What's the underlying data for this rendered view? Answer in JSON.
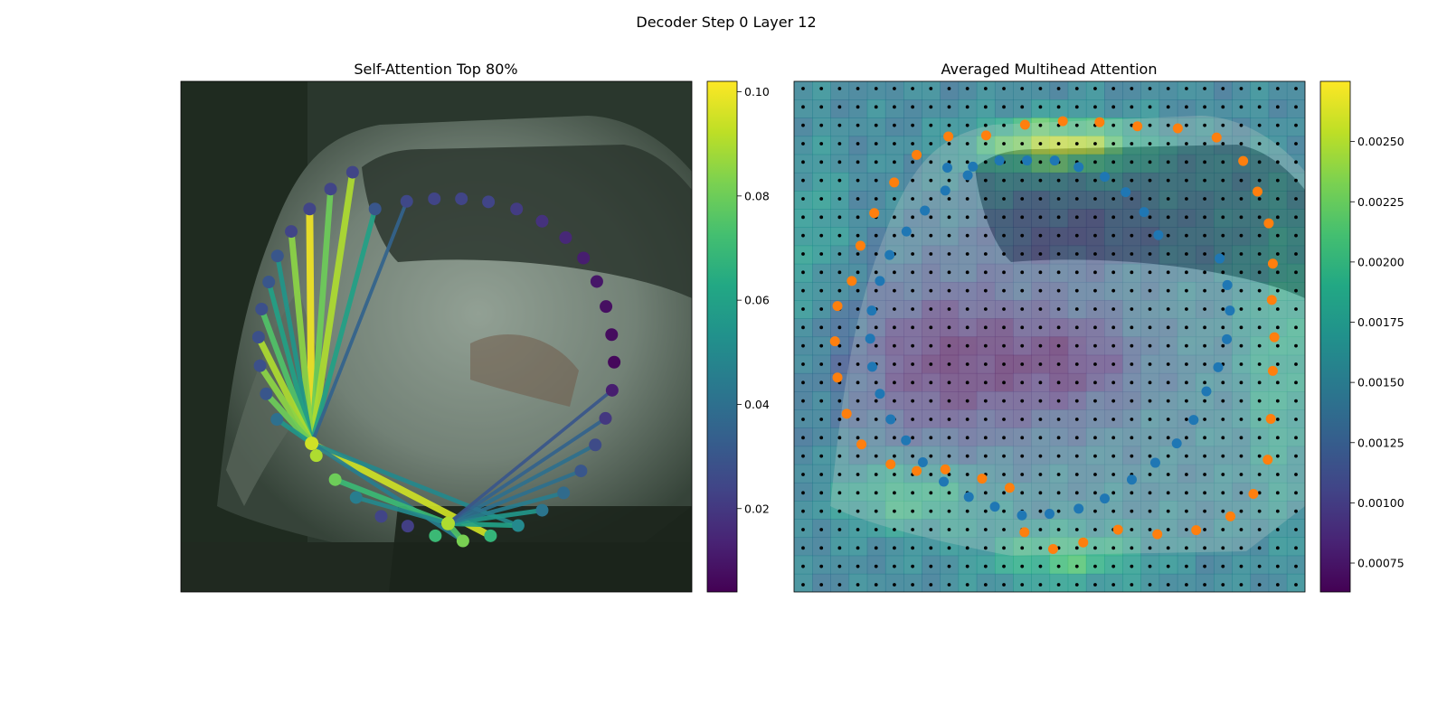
{
  "figure_title": "Decoder Step 0 Layer 12",
  "chart_data": [
    {
      "type": "scatter",
      "title": "Self-Attention Top 80%",
      "colormap": "viridis",
      "background": "photo of a silver hatchback car (front-left view)",
      "colorbar": {
        "range": [
          0.004,
          0.102
        ],
        "ticks": [
          0.02,
          0.04,
          0.06,
          0.08,
          0.1
        ],
        "tick_labels": [
          "0.02",
          "0.04",
          "0.06",
          "0.08",
          "0.10"
        ]
      },
      "points": [
        {
          "x": 0.38,
          "y": 0.25,
          "v": 0.03
        },
        {
          "x": 0.442,
          "y": 0.235,
          "v": 0.025
        },
        {
          "x": 0.496,
          "y": 0.23,
          "v": 0.024
        },
        {
          "x": 0.549,
          "y": 0.23,
          "v": 0.024
        },
        {
          "x": 0.602,
          "y": 0.236,
          "v": 0.024
        },
        {
          "x": 0.657,
          "y": 0.25,
          "v": 0.021
        },
        {
          "x": 0.707,
          "y": 0.274,
          "v": 0.018
        },
        {
          "x": 0.753,
          "y": 0.306,
          "v": 0.015
        },
        {
          "x": 0.788,
          "y": 0.346,
          "v": 0.012
        },
        {
          "x": 0.814,
          "y": 0.392,
          "v": 0.01
        },
        {
          "x": 0.832,
          "y": 0.441,
          "v": 0.008
        },
        {
          "x": 0.843,
          "y": 0.496,
          "v": 0.007
        },
        {
          "x": 0.848,
          "y": 0.55,
          "v": 0.006
        },
        {
          "x": 0.844,
          "y": 0.605,
          "v": 0.012
        },
        {
          "x": 0.831,
          "y": 0.66,
          "v": 0.02
        },
        {
          "x": 0.811,
          "y": 0.712,
          "v": 0.026
        },
        {
          "x": 0.783,
          "y": 0.763,
          "v": 0.03
        },
        {
          "x": 0.749,
          "y": 0.806,
          "v": 0.038
        },
        {
          "x": 0.707,
          "y": 0.84,
          "v": 0.042
        },
        {
          "x": 0.66,
          "y": 0.87,
          "v": 0.05
        },
        {
          "x": 0.606,
          "y": 0.89,
          "v": 0.068
        },
        {
          "x": 0.552,
          "y": 0.9,
          "v": 0.082
        },
        {
          "x": 0.498,
          "y": 0.89,
          "v": 0.07
        },
        {
          "x": 0.444,
          "y": 0.871,
          "v": 0.022
        },
        {
          "x": 0.392,
          "y": 0.852,
          "v": 0.024
        },
        {
          "x": 0.343,
          "y": 0.815,
          "v": 0.045
        },
        {
          "x": 0.302,
          "y": 0.78,
          "v": 0.08
        },
        {
          "x": 0.265,
          "y": 0.733,
          "v": 0.09
        },
        {
          "x": 0.188,
          "y": 0.662,
          "v": 0.04
        },
        {
          "x": 0.167,
          "y": 0.612,
          "v": 0.03
        },
        {
          "x": 0.155,
          "y": 0.557,
          "v": 0.028
        },
        {
          "x": 0.152,
          "y": 0.501,
          "v": 0.028
        },
        {
          "x": 0.158,
          "y": 0.446,
          "v": 0.028
        },
        {
          "x": 0.172,
          "y": 0.393,
          "v": 0.03
        },
        {
          "x": 0.189,
          "y": 0.342,
          "v": 0.03
        },
        {
          "x": 0.216,
          "y": 0.294,
          "v": 0.024
        },
        {
          "x": 0.252,
          "y": 0.25,
          "v": 0.024
        },
        {
          "x": 0.293,
          "y": 0.211,
          "v": 0.024
        },
        {
          "x": 0.336,
          "y": 0.178,
          "v": 0.024
        }
      ],
      "queries": [
        {
          "x": 0.256,
          "y": 0.709,
          "v": 0.095
        },
        {
          "x": 0.523,
          "y": 0.866,
          "v": 0.09
        }
      ],
      "lines": [
        {
          "q": 0,
          "to": 36,
          "v": 0.1
        },
        {
          "q": 0,
          "to": 37,
          "v": 0.08
        },
        {
          "q": 0,
          "to": 38,
          "v": 0.09
        },
        {
          "q": 0,
          "to": 35,
          "v": 0.085
        },
        {
          "q": 0,
          "to": 0,
          "v": 0.06
        },
        {
          "q": 0,
          "to": 34,
          "v": 0.055
        },
        {
          "q": 0,
          "to": 33,
          "v": 0.06
        },
        {
          "q": 0,
          "to": 32,
          "v": 0.075
        },
        {
          "q": 0,
          "to": 31,
          "v": 0.09
        },
        {
          "q": 0,
          "to": 30,
          "v": 0.085
        },
        {
          "q": 0,
          "to": 29,
          "v": 0.08
        },
        {
          "q": 0,
          "to": 28,
          "v": 0.055
        },
        {
          "q": 0,
          "to": 1,
          "v": 0.035
        },
        {
          "q": 0,
          "to": 20,
          "v": 0.095
        },
        {
          "q": 0,
          "to": 19,
          "v": 0.05
        },
        {
          "q": 0,
          "to": 21,
          "v": 0.045
        },
        {
          "q": 1,
          "to": 26,
          "v": 0.07
        },
        {
          "q": 1,
          "to": 25,
          "v": 0.05
        },
        {
          "q": 1,
          "to": 21,
          "v": 0.075
        },
        {
          "q": 1,
          "to": 19,
          "v": 0.06
        },
        {
          "q": 1,
          "to": 18,
          "v": 0.055
        },
        {
          "q": 1,
          "to": 17,
          "v": 0.045
        },
        {
          "q": 1,
          "to": 16,
          "v": 0.04
        },
        {
          "q": 1,
          "to": 15,
          "v": 0.04
        },
        {
          "q": 1,
          "to": 14,
          "v": 0.035
        },
        {
          "q": 1,
          "to": 13,
          "v": 0.03
        }
      ]
    },
    {
      "type": "heatmap",
      "title": "Averaged Multihead Attention",
      "colormap": "viridis",
      "background": "photo of a silver hatchback car, overlaid with attention heatmap",
      "colorbar": {
        "range": [
          0.00063,
          0.00275
        ],
        "ticks": [
          0.00075,
          0.001,
          0.00125,
          0.0015,
          0.00175,
          0.002,
          0.00225,
          0.0025
        ],
        "tick_labels": [
          "0.00075",
          "0.00100",
          "0.00125",
          "0.00150",
          "0.00175",
          "0.00200",
          "0.00225",
          "0.00250"
        ]
      },
      "grid": {
        "rows": 28,
        "cols": 28
      },
      "hot_spots": [
        {
          "x": 0.52,
          "y": 0.125,
          "v": 0.0026,
          "sx": 0.11,
          "sy": 0.035
        },
        {
          "x": 0.3,
          "y": 0.55,
          "v": 0.00068,
          "sx": 0.13,
          "sy": 0.12
        },
        {
          "x": 0.55,
          "y": 0.55,
          "v": 0.00085,
          "sx": 0.1,
          "sy": 0.08
        },
        {
          "x": 0.23,
          "y": 0.81,
          "v": 0.00205,
          "sx": 0.1,
          "sy": 0.05
        },
        {
          "x": 0.53,
          "y": 0.93,
          "v": 0.0021,
          "sx": 0.11,
          "sy": 0.04
        },
        {
          "x": 0.55,
          "y": 0.3,
          "v": 0.0011,
          "sx": 0.14,
          "sy": 0.06
        },
        {
          "x": 0.95,
          "y": 0.55,
          "v": 0.0019,
          "sx": 0.05,
          "sy": 0.2
        },
        {
          "x": 0.04,
          "y": 0.3,
          "v": 0.00175,
          "sx": 0.04,
          "sy": 0.12
        }
      ],
      "outer_points": [
        [
          0.452,
          0.085
        ],
        [
          0.526,
          0.078
        ],
        [
          0.598,
          0.08
        ],
        [
          0.672,
          0.088
        ],
        [
          0.751,
          0.092
        ],
        [
          0.827,
          0.11
        ],
        [
          0.879,
          0.156
        ],
        [
          0.907,
          0.216
        ],
        [
          0.929,
          0.278
        ],
        [
          0.937,
          0.357
        ],
        [
          0.935,
          0.428
        ],
        [
          0.94,
          0.501
        ],
        [
          0.937,
          0.567
        ],
        [
          0.933,
          0.661
        ],
        [
          0.927,
          0.741
        ],
        [
          0.899,
          0.808
        ],
        [
          0.854,
          0.852
        ],
        [
          0.787,
          0.879
        ],
        [
          0.711,
          0.887
        ],
        [
          0.634,
          0.878
        ],
        [
          0.566,
          0.903
        ],
        [
          0.507,
          0.916
        ],
        [
          0.451,
          0.883
        ],
        [
          0.422,
          0.796
        ],
        [
          0.368,
          0.778
        ],
        [
          0.296,
          0.76
        ],
        [
          0.24,
          0.763
        ],
        [
          0.189,
          0.75
        ],
        [
          0.132,
          0.711
        ],
        [
          0.103,
          0.651
        ],
        [
          0.085,
          0.58
        ],
        [
          0.08,
          0.509
        ],
        [
          0.085,
          0.44
        ],
        [
          0.113,
          0.391
        ],
        [
          0.13,
          0.322
        ],
        [
          0.157,
          0.258
        ],
        [
          0.196,
          0.198
        ],
        [
          0.24,
          0.144
        ],
        [
          0.302,
          0.108
        ],
        [
          0.376,
          0.106
        ]
      ],
      "inner_points": [
        [
          0.3,
          0.169
        ],
        [
          0.35,
          0.167
        ],
        [
          0.402,
          0.155
        ],
        [
          0.456,
          0.155
        ],
        [
          0.51,
          0.155
        ],
        [
          0.557,
          0.168
        ],
        [
          0.608,
          0.187
        ],
        [
          0.649,
          0.217
        ],
        [
          0.685,
          0.256
        ],
        [
          0.713,
          0.301
        ],
        [
          0.833,
          0.347
        ],
        [
          0.848,
          0.399
        ],
        [
          0.853,
          0.449
        ],
        [
          0.847,
          0.505
        ],
        [
          0.83,
          0.56
        ],
        [
          0.807,
          0.607
        ],
        [
          0.782,
          0.663
        ],
        [
          0.749,
          0.709
        ],
        [
          0.707,
          0.747
        ],
        [
          0.661,
          0.78
        ],
        [
          0.608,
          0.817
        ],
        [
          0.557,
          0.837
        ],
        [
          0.5,
          0.847
        ],
        [
          0.446,
          0.85
        ],
        [
          0.393,
          0.833
        ],
        [
          0.342,
          0.814
        ],
        [
          0.293,
          0.784
        ],
        [
          0.252,
          0.746
        ],
        [
          0.219,
          0.703
        ],
        [
          0.189,
          0.662
        ],
        [
          0.168,
          0.612
        ],
        [
          0.153,
          0.559
        ],
        [
          0.149,
          0.504
        ],
        [
          0.152,
          0.449
        ],
        [
          0.168,
          0.391
        ],
        [
          0.187,
          0.34
        ],
        [
          0.22,
          0.294
        ],
        [
          0.256,
          0.253
        ],
        [
          0.296,
          0.214
        ],
        [
          0.34,
          0.184
        ]
      ]
    }
  ]
}
